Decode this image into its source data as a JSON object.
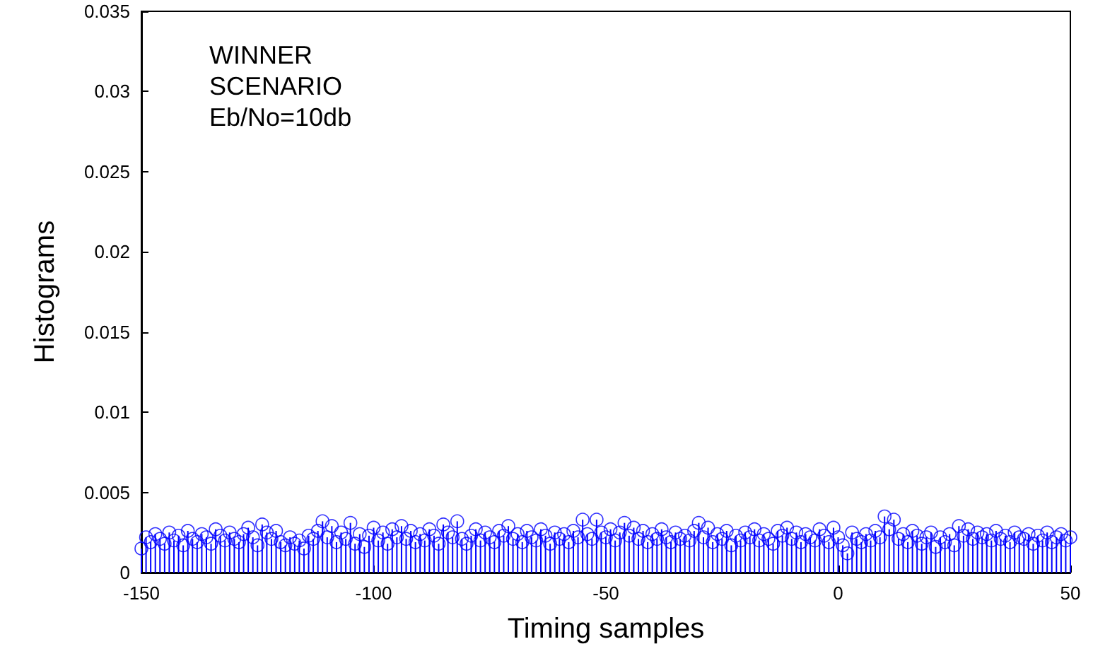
{
  "chart_data": {
    "type": "lollipop",
    "xlabel": "Timing samples",
    "ylabel": "Histograms",
    "annotations": [
      "WINNER",
      "SCENARIO",
      "Eb/No=10db"
    ],
    "marker": "circle",
    "grid": false,
    "xlim": [
      -150,
      50
    ],
    "xticks": [
      -150,
      -100,
      -50,
      0,
      50
    ],
    "ylim": [
      0,
      0.035
    ],
    "yticks": [
      0,
      0.005,
      0.01,
      0.015,
      0.02,
      0.025,
      0.03,
      0.035
    ],
    "series": [
      {
        "color": "#0000ff",
        "x": [
          -150,
          -149,
          -148,
          -147,
          -146,
          -145,
          -144,
          -143,
          -142,
          -141,
          -140,
          -139,
          -138,
          -137,
          -136,
          -135,
          -134,
          -133,
          -132,
          -131,
          -130,
          -129,
          -128,
          -127,
          -126,
          -125,
          -124,
          -123,
          -122,
          -121,
          -120,
          -119,
          -118,
          -117,
          -116,
          -115,
          -114,
          -113,
          -112,
          -111,
          -110,
          -109,
          -108,
          -107,
          -106,
          -105,
          -104,
          -103,
          -102,
          -101,
          -100,
          -99,
          -98,
          -97,
          -96,
          -95,
          -94,
          -93,
          -92,
          -91,
          -90,
          -89,
          -88,
          -87,
          -86,
          -85,
          -84,
          -83,
          -82,
          -81,
          -80,
          -79,
          -78,
          -77,
          -76,
          -75,
          -74,
          -73,
          -72,
          -71,
          -70,
          -69,
          -68,
          -67,
          -66,
          -65,
          -64,
          -63,
          -62,
          -61,
          -60,
          -59,
          -58,
          -57,
          -56,
          -55,
          -54,
          -53,
          -52,
          -51,
          -50,
          -49,
          -48,
          -47,
          -46,
          -45,
          -44,
          -43,
          -42,
          -41,
          -40,
          -39,
          -38,
          -37,
          -36,
          -35,
          -34,
          -33,
          -32,
          -31,
          -30,
          -29,
          -28,
          -27,
          -26,
          -25,
          -24,
          -23,
          -22,
          -21,
          -20,
          -19,
          -18,
          -17,
          -16,
          -15,
          -14,
          -13,
          -12,
          -11,
          -10,
          -9,
          -8,
          -7,
          -6,
          -5,
          -4,
          -3,
          -2,
          -1,
          0,
          1,
          2,
          3,
          4,
          5,
          6,
          7,
          8,
          9,
          10,
          11,
          12,
          13,
          14,
          15,
          16,
          17,
          18,
          19,
          20,
          21,
          22,
          23,
          24,
          25,
          26,
          27,
          28,
          29,
          30,
          31,
          32,
          33,
          34,
          35,
          36,
          37,
          38,
          39,
          40,
          41,
          42,
          43,
          44,
          45,
          46,
          47,
          48,
          49,
          50
        ],
        "values": [
          0.0015,
          0.0022,
          0.0019,
          0.0024,
          0.0021,
          0.0018,
          0.0025,
          0.002,
          0.0023,
          0.0017,
          0.0026,
          0.0021,
          0.0019,
          0.0024,
          0.0022,
          0.0018,
          0.0027,
          0.0023,
          0.002,
          0.0025,
          0.0021,
          0.0019,
          0.0024,
          0.0028,
          0.0022,
          0.0017,
          0.003,
          0.0025,
          0.0021,
          0.0026,
          0.0019,
          0.0017,
          0.0022,
          0.0018,
          0.002,
          0.0015,
          0.0023,
          0.0021,
          0.0026,
          0.0032,
          0.0022,
          0.0029,
          0.0019,
          0.0025,
          0.0021,
          0.0031,
          0.0018,
          0.0024,
          0.0016,
          0.0023,
          0.0028,
          0.002,
          0.0025,
          0.0018,
          0.0027,
          0.0022,
          0.0029,
          0.0021,
          0.0026,
          0.0019,
          0.0024,
          0.002,
          0.0027,
          0.0023,
          0.0018,
          0.003,
          0.0025,
          0.0022,
          0.0032,
          0.0021,
          0.0018,
          0.0023,
          0.0027,
          0.002,
          0.0025,
          0.0022,
          0.0019,
          0.0026,
          0.0023,
          0.0029,
          0.0021,
          0.0024,
          0.0019,
          0.0026,
          0.0022,
          0.002,
          0.0027,
          0.0023,
          0.0018,
          0.0025,
          0.0021,
          0.0024,
          0.0019,
          0.0026,
          0.0022,
          0.0033,
          0.0024,
          0.0021,
          0.0033,
          0.0025,
          0.0022,
          0.0027,
          0.002,
          0.0025,
          0.0031,
          0.0023,
          0.0028,
          0.0021,
          0.0026,
          0.0019,
          0.0024,
          0.0021,
          0.0027,
          0.0022,
          0.0019,
          0.0025,
          0.0021,
          0.0023,
          0.002,
          0.0026,
          0.0031,
          0.0022,
          0.0028,
          0.0019,
          0.0024,
          0.0021,
          0.0026,
          0.0017,
          0.0023,
          0.002,
          0.0025,
          0.0022,
          0.0027,
          0.002,
          0.0024,
          0.0021,
          0.0018,
          0.0026,
          0.0023,
          0.0028,
          0.0021,
          0.0025,
          0.0019,
          0.0024,
          0.0022,
          0.002,
          0.0027,
          0.0023,
          0.0019,
          0.0028,
          0.0022,
          0.0017,
          0.0012,
          0.0025,
          0.0021,
          0.0019,
          0.0024,
          0.002,
          0.0026,
          0.0022,
          0.0035,
          0.0027,
          0.0033,
          0.0021,
          0.0024,
          0.0019,
          0.0026,
          0.0023,
          0.0018,
          0.0022,
          0.0025,
          0.0016,
          0.0022,
          0.0019,
          0.0024,
          0.0017,
          0.0029,
          0.0023,
          0.0027,
          0.0021,
          0.0025,
          0.0022,
          0.0024,
          0.002,
          0.0026,
          0.0021,
          0.0023,
          0.0019,
          0.0025,
          0.0022,
          0.0021,
          0.0024,
          0.0018,
          0.0023,
          0.002,
          0.0025,
          0.0019,
          0.0022,
          0.0024,
          0.002,
          0.0022
        ]
      }
    ]
  }
}
